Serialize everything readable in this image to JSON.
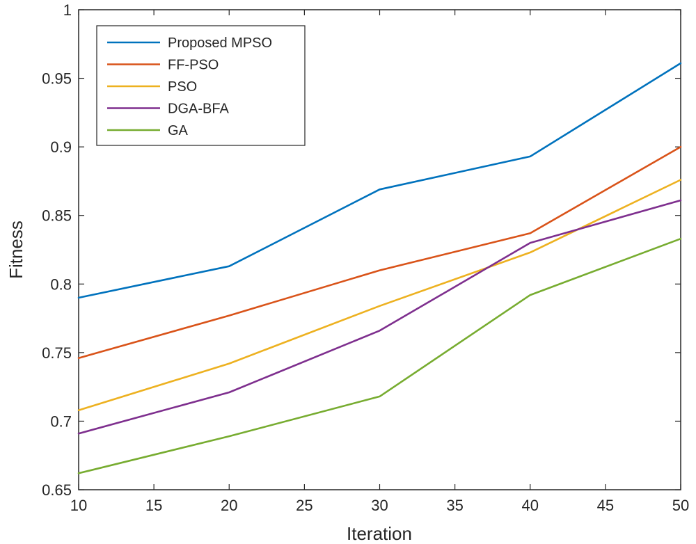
{
  "chart_data": {
    "type": "line",
    "title": "",
    "xlabel": "Iteration",
    "ylabel": "Fitness",
    "xlim": [
      10,
      50
    ],
    "ylim": [
      0.65,
      1
    ],
    "xticks": [
      10,
      15,
      20,
      25,
      30,
      35,
      40,
      45,
      50
    ],
    "yticks": [
      0.65,
      0.7,
      0.75,
      0.8,
      0.85,
      0.9,
      0.95,
      1
    ],
    "ytick_labels": [
      "0.65",
      "0.7",
      "0.75",
      "0.8",
      "0.85",
      "0.9",
      "0.95",
      "1"
    ],
    "grid": false,
    "legend_position": "top-left",
    "x": [
      10,
      20,
      30,
      40,
      50
    ],
    "series": [
      {
        "name": "Proposed MPSO",
        "color": "#0072BD",
        "values": [
          0.79,
          0.813,
          0.869,
          0.893,
          0.961
        ]
      },
      {
        "name": "FF-PSO",
        "color": "#D95319",
        "values": [
          0.746,
          0.777,
          0.81,
          0.837,
          0.9
        ]
      },
      {
        "name": "PSO",
        "color": "#EDB120",
        "values": [
          0.708,
          0.742,
          0.784,
          0.823,
          0.876
        ]
      },
      {
        "name": "DGA-BFA",
        "color": "#7E2F8E",
        "values": [
          0.691,
          0.721,
          0.766,
          0.83,
          0.861
        ]
      },
      {
        "name": "GA",
        "color": "#77AC30",
        "values": [
          0.662,
          0.689,
          0.718,
          0.792,
          0.833
        ]
      }
    ]
  }
}
